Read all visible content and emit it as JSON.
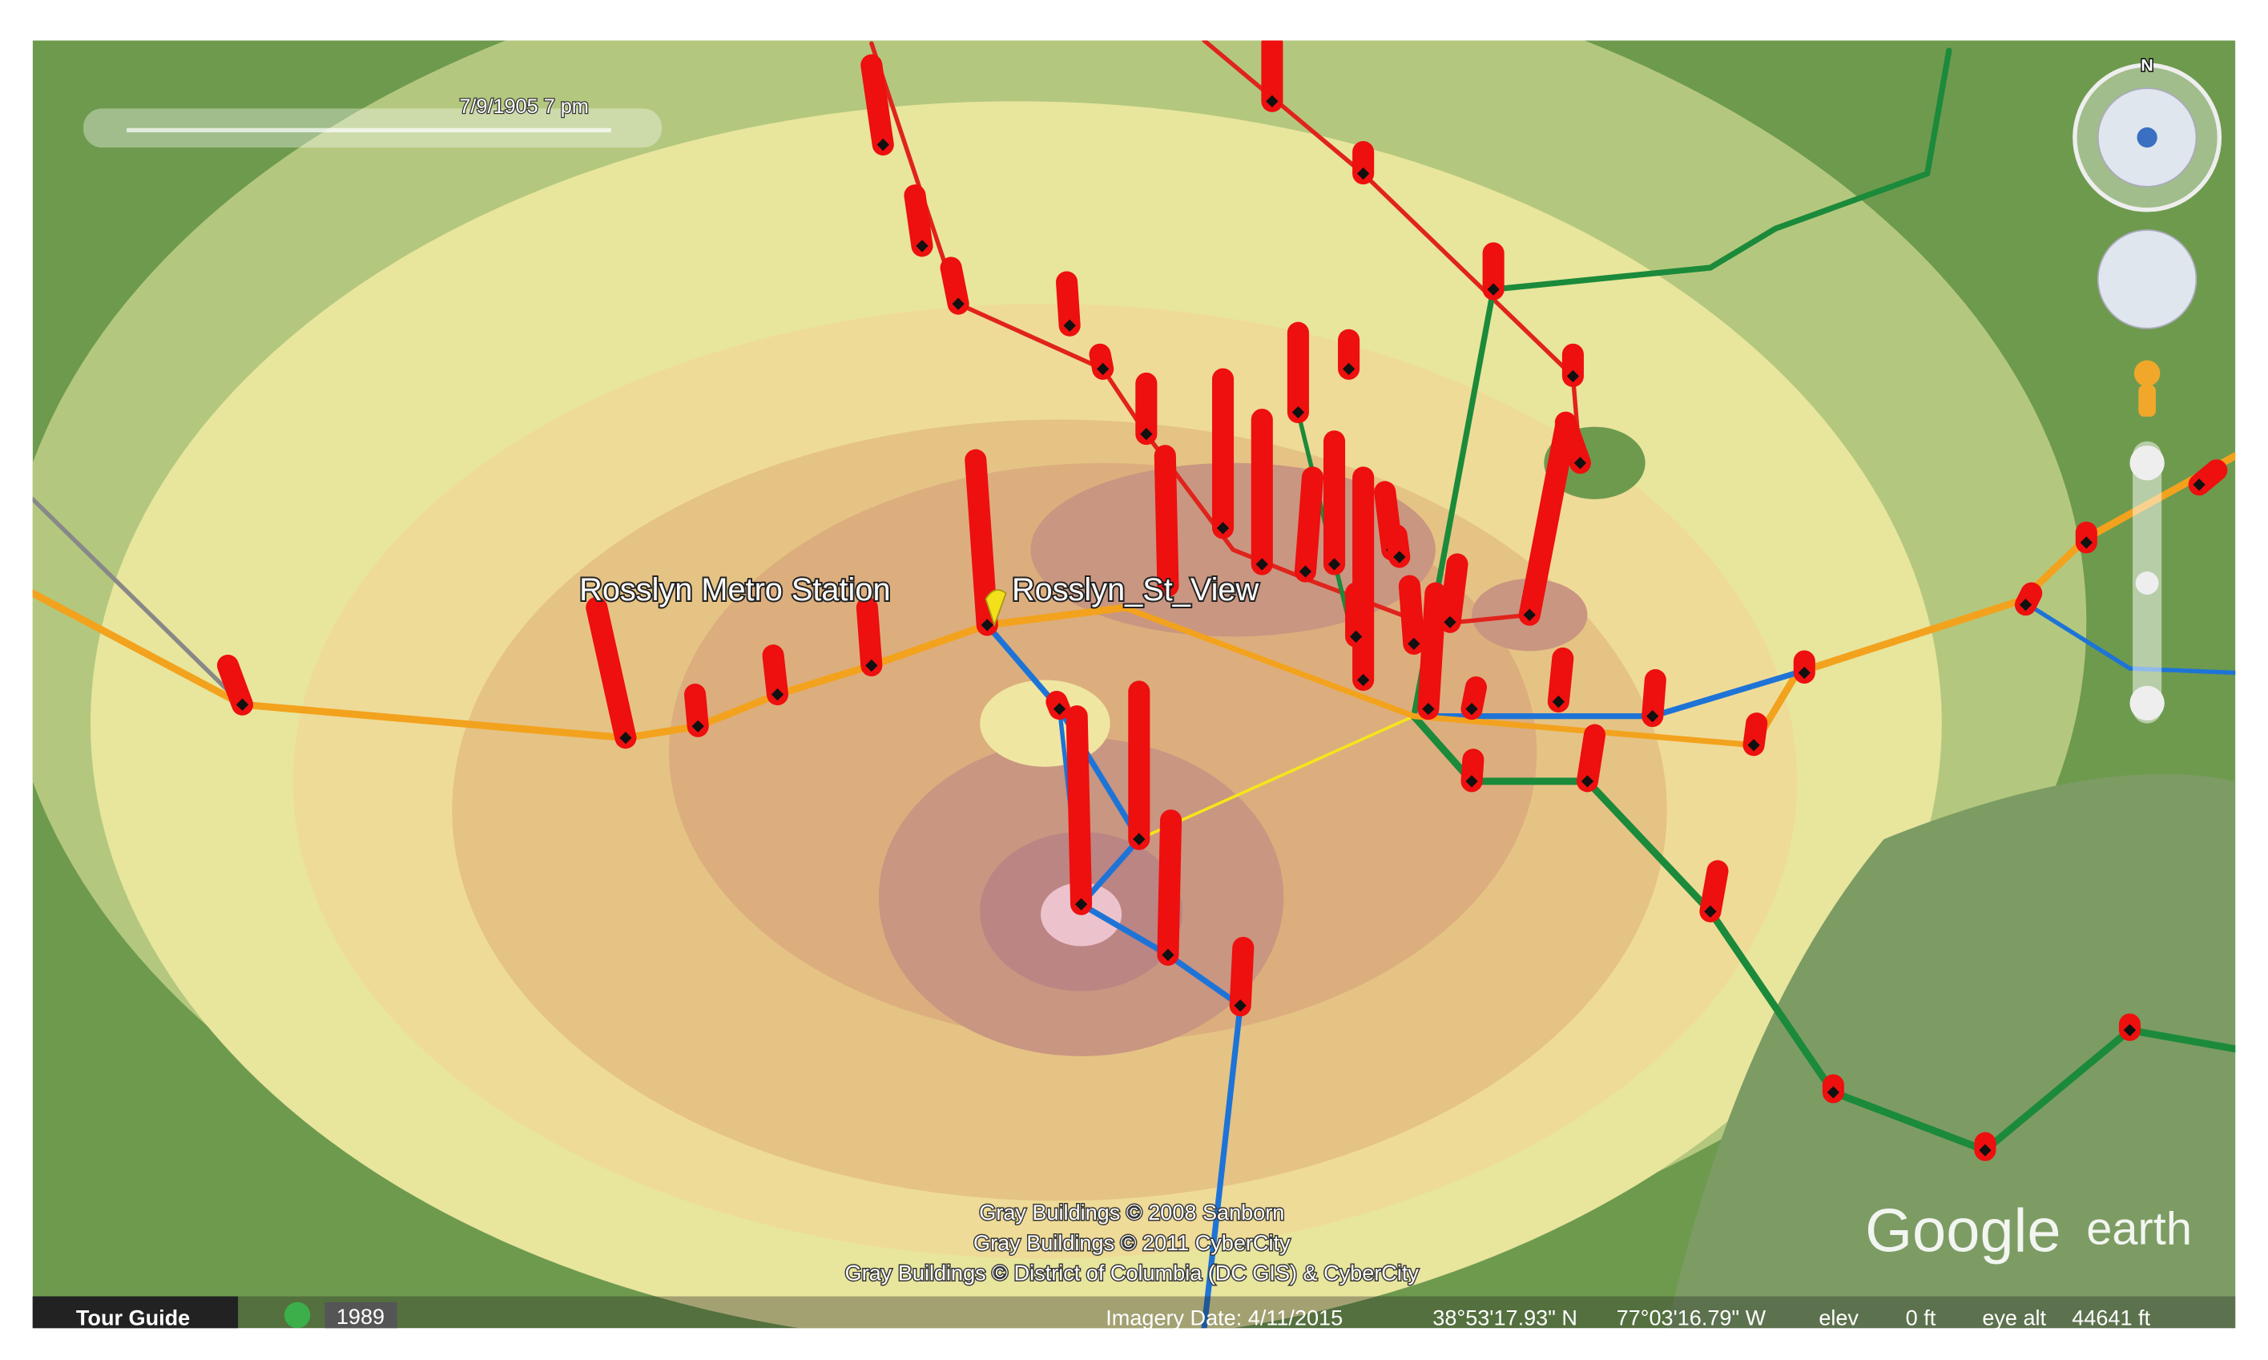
{
  "time_slider": {
    "label": "7/9/1905  7 pm"
  },
  "compass": {
    "north": "N"
  },
  "placemarks": [
    {
      "label": "Rosslyn Metro Station"
    },
    {
      "label": "Rosslyn_St_View"
    }
  ],
  "attribution": [
    "Gray Buildings © 2008 Sanborn",
    "Gray Buildings © 2011 CyberCity",
    "Gray Buildings © District of Columbia (DC GIS) & CyberCity"
  ],
  "logo": {
    "brand": "Google",
    "product": "earth"
  },
  "status_bar": {
    "tour_guide": "Tour Guide",
    "historical_year": "1989",
    "imagery_date": "Imagery Date: 4/11/2015",
    "latitude": "38°53'17.93\" N",
    "longitude": "77°03'16.79\" W",
    "elev_label": "elev",
    "elev_value": "0 ft",
    "eye_alt_label": "eye alt",
    "eye_alt_value": "44641 ft"
  }
}
